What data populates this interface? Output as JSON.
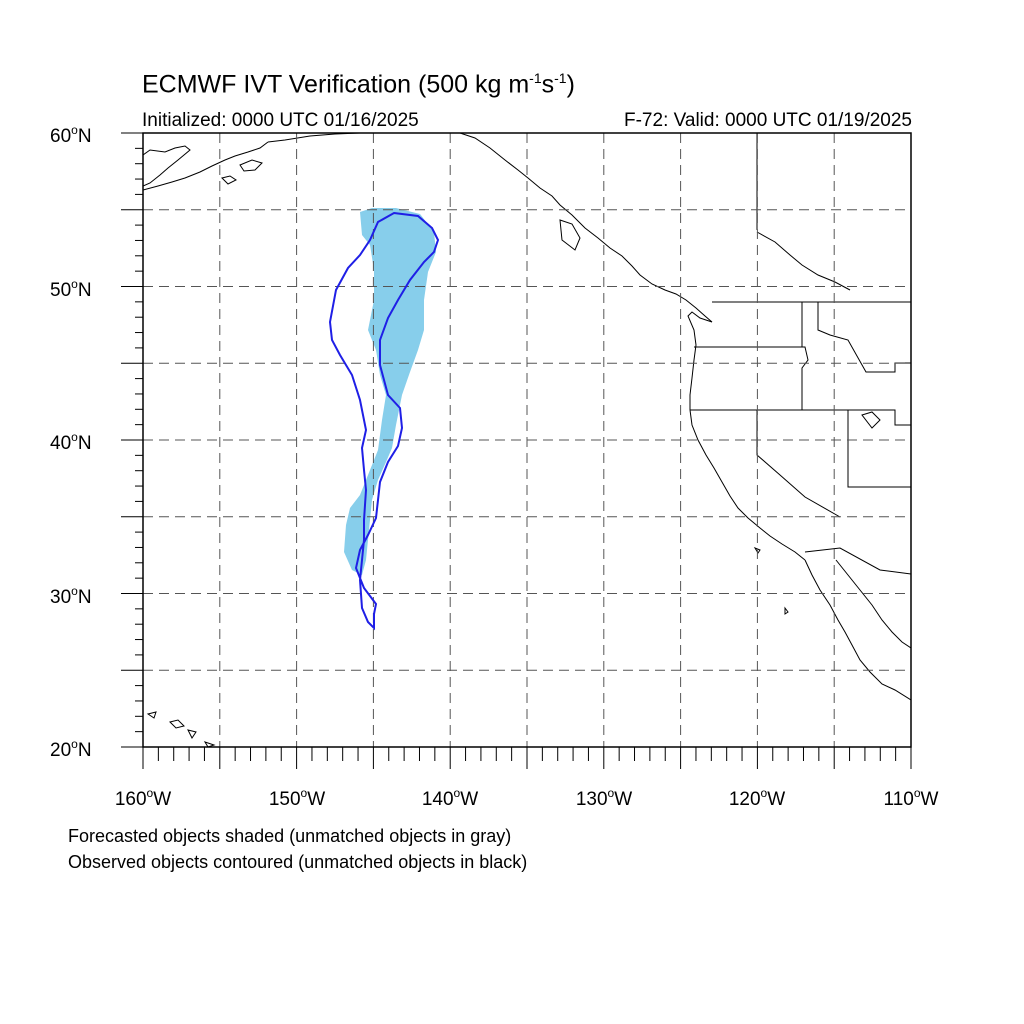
{
  "title": {
    "main": "ECMWF IVT Verification (500 kg m",
    "sup1": "-1",
    "mid": "s",
    "sup2": "-1",
    "end": ")"
  },
  "subtitle": {
    "initialized": "Initialized: 0000 UTC 01/16/2025",
    "valid": "F-72: Valid: 0000 UTC 01/19/2025"
  },
  "map": {
    "lat_labels": [
      {
        "deg": "60",
        "hemi": "N"
      },
      {
        "deg": "50",
        "hemi": "N"
      },
      {
        "deg": "40",
        "hemi": "N"
      },
      {
        "deg": "30",
        "hemi": "N"
      },
      {
        "deg": "20",
        "hemi": "N"
      }
    ],
    "lon_labels": [
      {
        "deg": "160",
        "hemi": "W"
      },
      {
        "deg": "150",
        "hemi": "W"
      },
      {
        "deg": "140",
        "hemi": "W"
      },
      {
        "deg": "130",
        "hemi": "W"
      },
      {
        "deg": "120",
        "hemi": "W"
      },
      {
        "deg": "110",
        "hemi": "W"
      }
    ],
    "extent": {
      "lon_min": -160,
      "lon_max": -110,
      "lat_min": 20,
      "lat_max": 60
    },
    "forecast_fill_color": "#87ceeb",
    "observed_contour_color": "#1f1fe6",
    "grid_style": "dashed"
  },
  "notes": {
    "forecast": "Forecasted objects shaded (unmatched objects in gray)",
    "observed": "Observed objects contoured (unmatched objects in black)"
  }
}
